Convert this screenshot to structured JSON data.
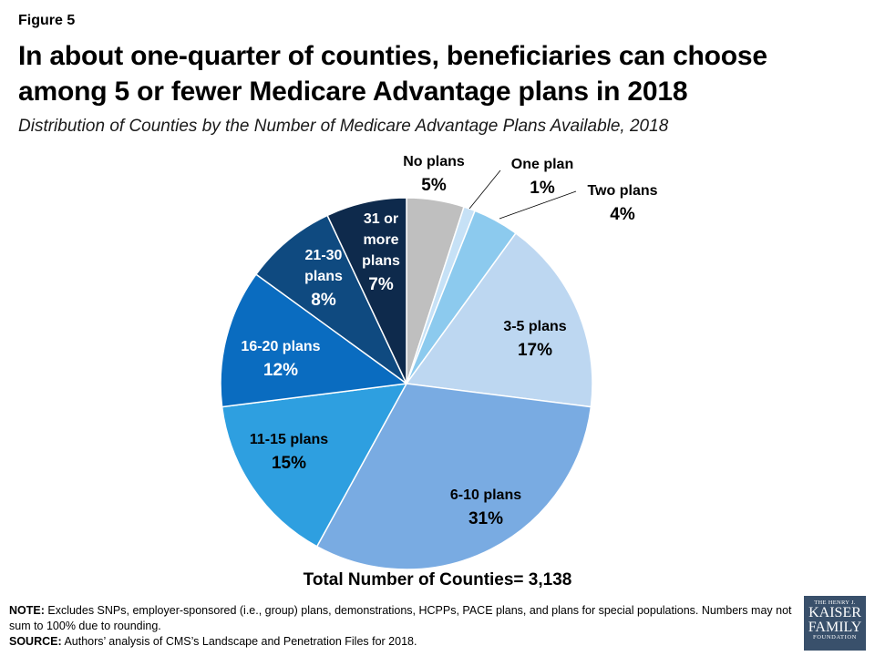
{
  "figure_label": "Figure 5",
  "title": "In about one-quarter of counties, beneficiaries can choose among 5 or fewer Medicare Advantage plans in 2018",
  "subtitle": "Distribution of Counties by the Number of Medicare Advantage Plans Available, 2018",
  "chart_data": {
    "type": "pie",
    "slices": [
      {
        "label": "No plans",
        "value": 5,
        "display": "5%",
        "color": "#bfbfbf"
      },
      {
        "label": "One plan",
        "value": 1,
        "display": "1%",
        "color": "#c6e1f6"
      },
      {
        "label": "Two plans",
        "value": 4,
        "display": "4%",
        "color": "#8ccaee"
      },
      {
        "label": "3-5 plans",
        "value": 17,
        "display": "17%",
        "color": "#bdd7f1"
      },
      {
        "label": "6-10 plans",
        "value": 31,
        "display": "31%",
        "color": "#79abe2"
      },
      {
        "label": "11-15 plans",
        "value": 15,
        "display": "15%",
        "color": "#2e9fe0"
      },
      {
        "label": "16-20 plans",
        "value": 12,
        "display": "12%",
        "color": "#0a6cc0"
      },
      {
        "label": "21-30 plans",
        "value": 8,
        "display": "8%",
        "color": "#0f4a80"
      },
      {
        "label": "31 or more plans",
        "value": 7,
        "display": "7%",
        "color": "#0e2a4c"
      }
    ]
  },
  "total_label": "Total Number of Counties= 3,138",
  "notes": {
    "note_label": "NOTE:",
    "note_text": " Excludes SNPs, employer-sponsored  (i.e., group) plans, demonstrations, HCPPs, PACE plans, and plans for special populations. Numbers may not sum to 100% due to rounding.",
    "source_label": "SOURCE:",
    "source_text": " Authors’ analysis of CMS’s Landscape and Penetration Files for 2018."
  },
  "logo": {
    "line1": "THE HENRY J.",
    "line2": "KAISER",
    "line3": "FAMILY",
    "line4": "FOUNDATION",
    "color": "#39506b"
  }
}
